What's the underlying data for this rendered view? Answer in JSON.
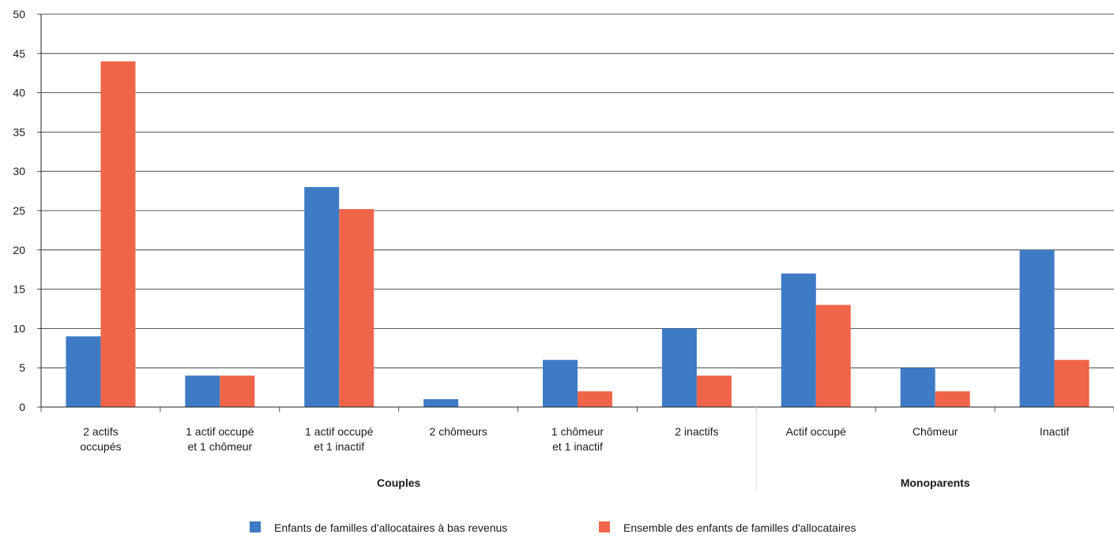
{
  "chart_data": {
    "type": "bar",
    "categories": [
      [
        "2 actifs",
        "occupés"
      ],
      [
        "1 actif occupé",
        "et 1 chômeur"
      ],
      [
        "1 actif occupé",
        "et 1 inactif"
      ],
      [
        "2 chômeurs"
      ],
      [
        "1 chômeur",
        "et 1 inactif"
      ],
      [
        "2 inactifs"
      ],
      [
        "Actif occupé"
      ],
      [
        "Chômeur"
      ],
      [
        "Inactif"
      ]
    ],
    "groups": [
      {
        "label": "Couples",
        "start": 0,
        "end": 5
      },
      {
        "label": "Monoparents",
        "start": 6,
        "end": 8
      }
    ],
    "series": [
      {
        "name": "Enfants de familles d'allocataires à bas revenus",
        "color": "#3e7bc4",
        "values": [
          9,
          4,
          28,
          1,
          6,
          10,
          17,
          5,
          20
        ]
      },
      {
        "name": "Ensemble des enfants de familles d'allocataires",
        "color": "#f0654a",
        "values": [
          44,
          4,
          25.2,
          0,
          2,
          4,
          13,
          2,
          6
        ]
      }
    ],
    "ylim": [
      0,
      50
    ],
    "yticks": [
      0,
      5,
      10,
      15,
      20,
      25,
      30,
      35,
      40,
      45,
      50
    ],
    "grid": true,
    "legend_position": "bottom"
  }
}
